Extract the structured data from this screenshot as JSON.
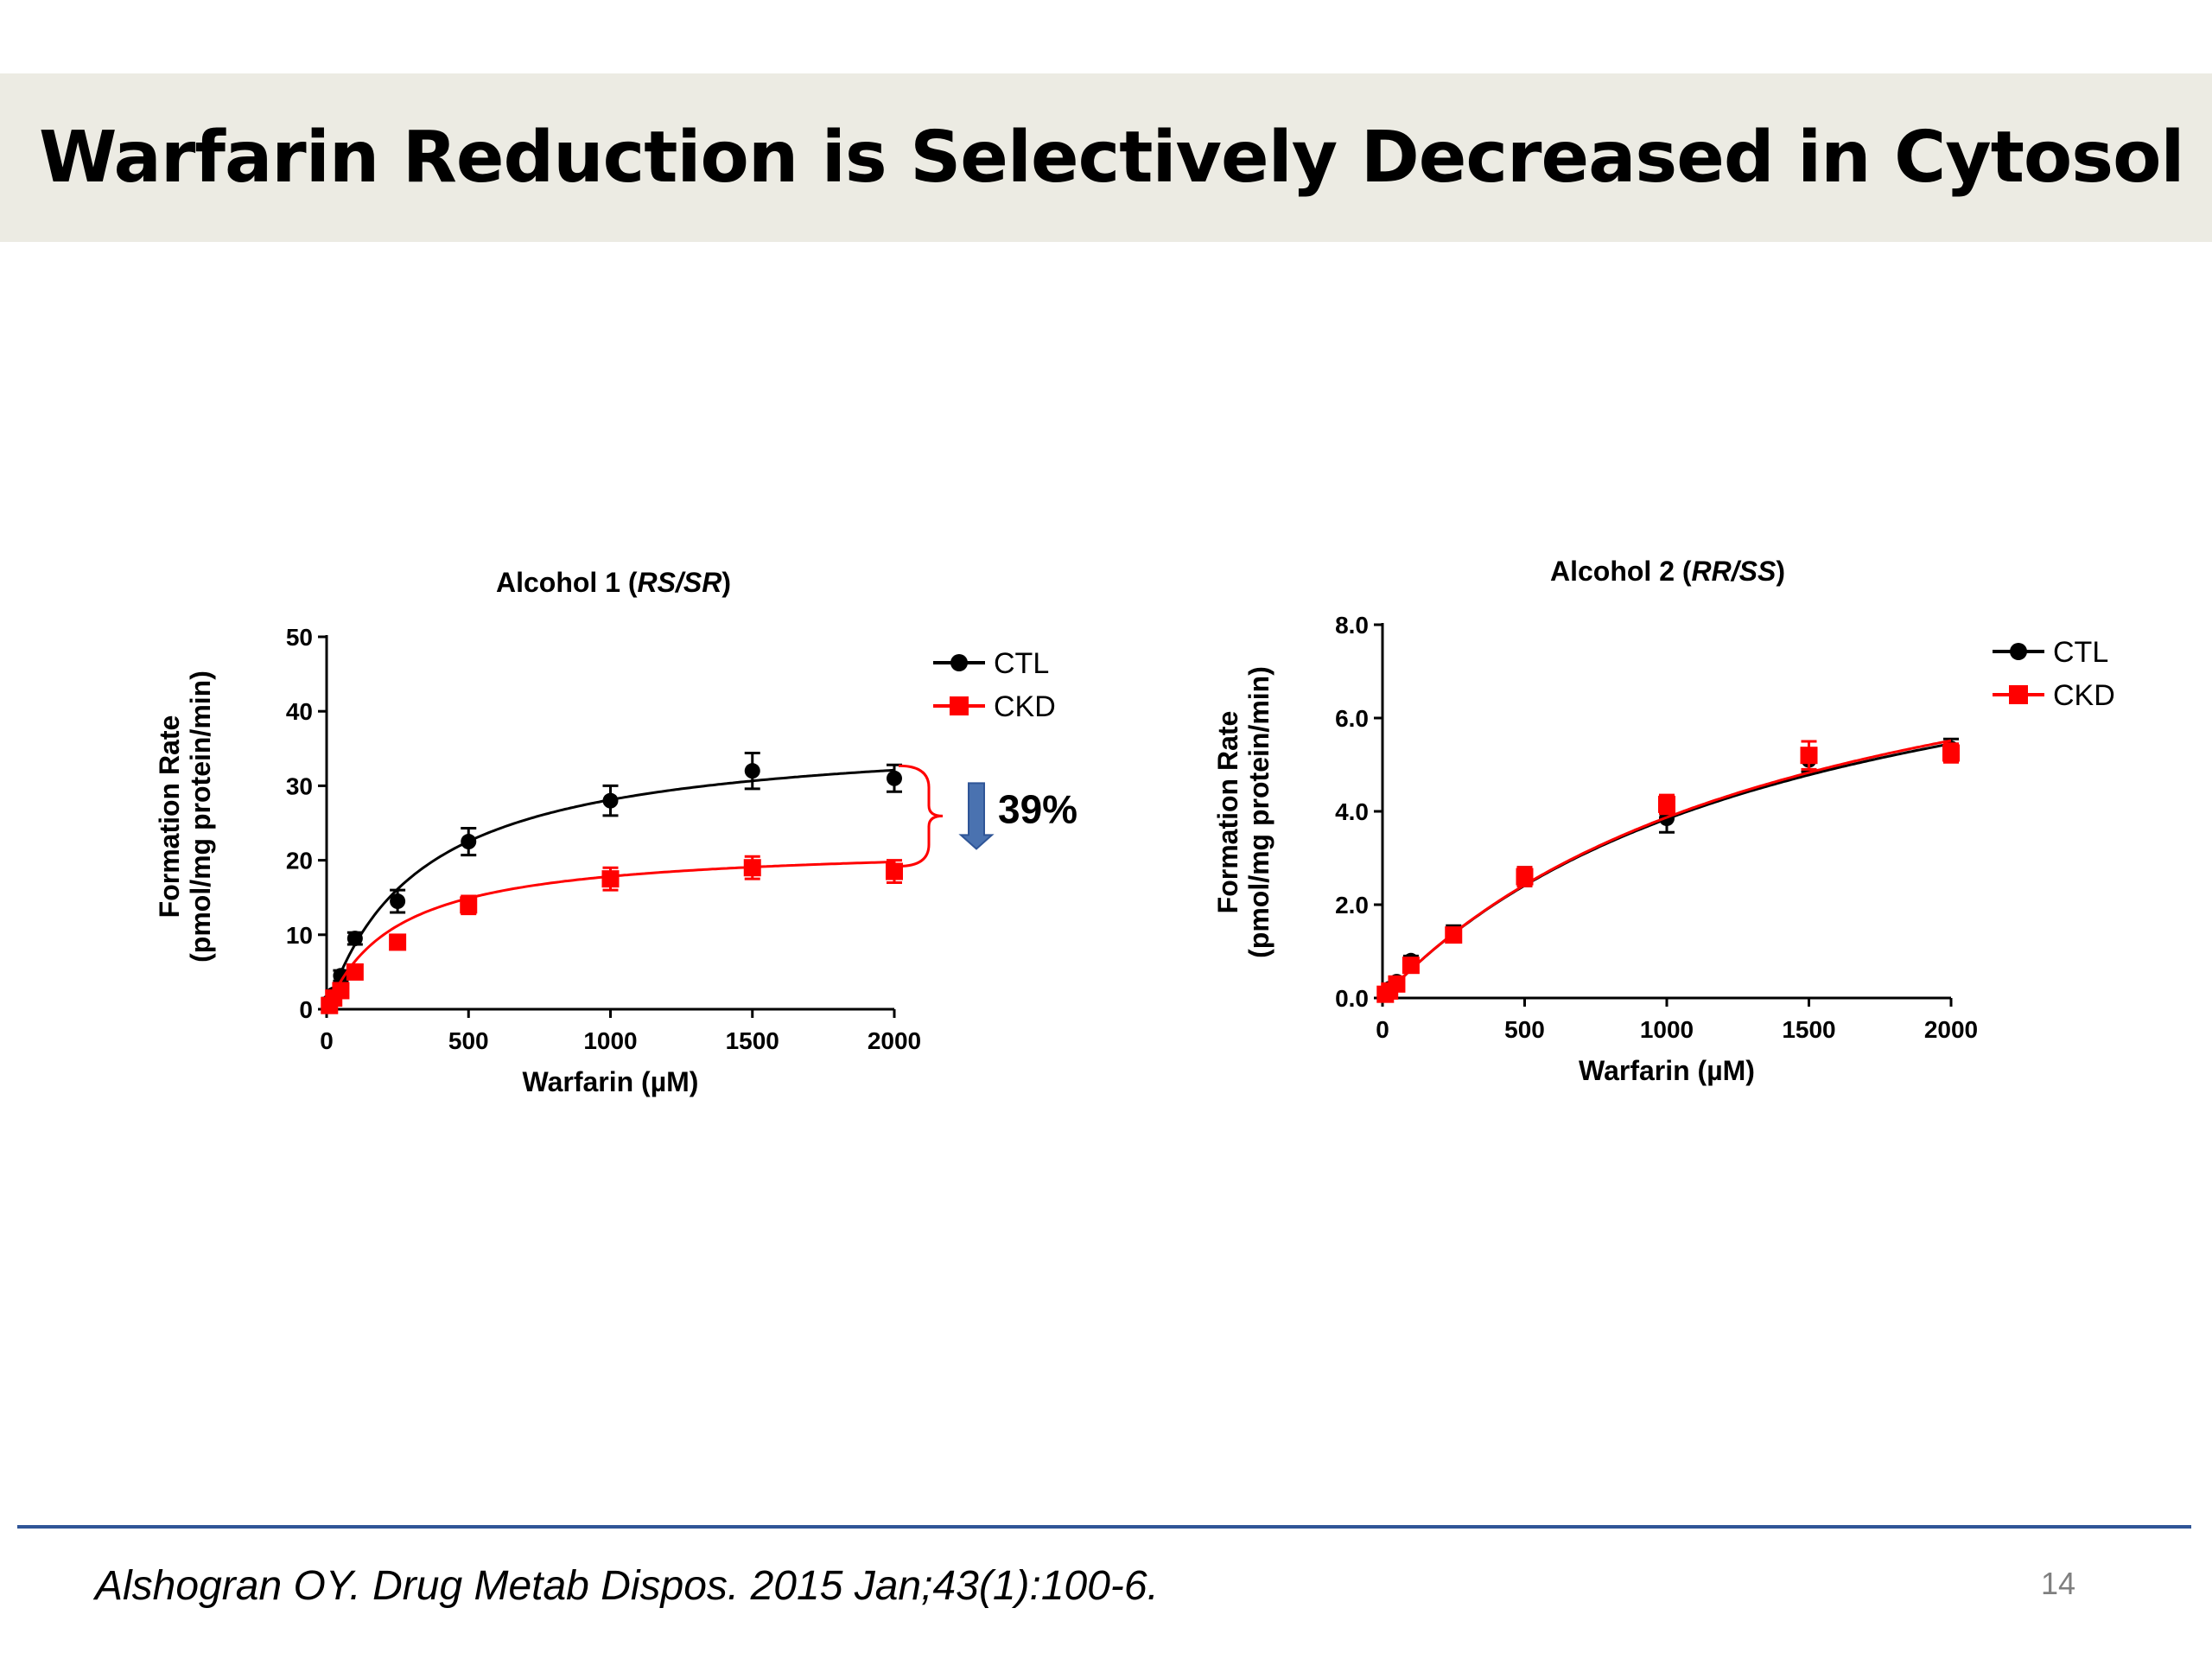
{
  "slide": {
    "title": "Warfarin Reduction is Selectively Decreased in Cytosol",
    "citation": "Alshogran OY. Drug Metab Dispos. 2015 Jan;43(1):100-6.",
    "page_number": "14",
    "footer_rule_color": "#2f5597"
  },
  "chart_data": [
    {
      "type": "scatter",
      "title": "Alcohol 1 (",
      "title_italic": "RS/SR",
      "title_end": ")",
      "xlabel": "Warfarin (µM)",
      "ylabel": "Formation Rate",
      "ylabel2": "(pmol/mg protein/min)",
      "xlim": [
        0,
        2000
      ],
      "ylim": [
        0,
        50
      ],
      "xticks": [
        "0",
        "500",
        "1000",
        "1500",
        "2000"
      ],
      "yticks": [
        "0",
        "10",
        "20",
        "30",
        "40",
        "50"
      ],
      "xtick_values": [
        0,
        500,
        1000,
        1500,
        2000
      ],
      "ytick_values": [
        0,
        10,
        20,
        30,
        40,
        50
      ],
      "legend_position": "top-right",
      "annotation": "39%",
      "series": [
        {
          "name": "CTL",
          "color": "#000000",
          "marker": "circle",
          "x": [
            10,
            25,
            50,
            100,
            250,
            500,
            1000,
            1500,
            2000
          ],
          "y": [
            1.0,
            2.0,
            4.5,
            9.5,
            14.5,
            22.5,
            28.0,
            32.0,
            31.0
          ],
          "err": [
            0.5,
            0.5,
            0.7,
            0.8,
            1.5,
            1.8,
            2.0,
            2.4,
            1.8
          ],
          "fit": {
            "vmax": 37.4,
            "km": 330
          }
        },
        {
          "name": "CKD",
          "color": "#ff0000",
          "marker": "square",
          "x": [
            10,
            25,
            50,
            100,
            250,
            500,
            1000,
            1500,
            2000
          ],
          "y": [
            0.5,
            1.5,
            2.5,
            5.0,
            9.0,
            14.0,
            17.5,
            19.0,
            18.5
          ],
          "err": [
            0.3,
            0.4,
            0.5,
            0.6,
            0.8,
            1.2,
            1.5,
            1.5,
            1.5
          ],
          "fit": {
            "vmax": 22.2,
            "km": 245
          }
        }
      ]
    },
    {
      "type": "scatter",
      "title": "Alcohol 2 (",
      "title_italic": "RR/SS",
      "title_end": ")",
      "xlabel": "Warfarin (µM)",
      "ylabel": "Formation Rate",
      "ylabel2": "(pmol/mg protein/min)",
      "xlim": [
        0,
        2000
      ],
      "ylim": [
        0,
        8
      ],
      "xticks": [
        "0",
        "500",
        "1000",
        "1500",
        "2000"
      ],
      "yticks": [
        "0.0",
        "2.0",
        "4.0",
        "6.0",
        "8.0"
      ],
      "xtick_values": [
        0,
        500,
        1000,
        1500,
        2000
      ],
      "ytick_values": [
        0,
        2,
        4,
        6,
        8
      ],
      "legend_position": "top-right",
      "series": [
        {
          "name": "CTL",
          "color": "#000000",
          "marker": "circle",
          "x": [
            10,
            25,
            50,
            100,
            250,
            500,
            1000,
            1500,
            2000
          ],
          "y": [
            0.1,
            0.2,
            0.35,
            0.8,
            1.4,
            2.6,
            3.85,
            5.1,
            5.35
          ],
          "err": [
            0.05,
            0.05,
            0.08,
            0.1,
            0.15,
            0.2,
            0.3,
            0.25,
            0.2
          ],
          "fit": {
            "vmax": 9.4,
            "km": 1450
          }
        },
        {
          "name": "CKD",
          "color": "#ff0000",
          "marker": "square",
          "x": [
            10,
            25,
            50,
            100,
            250,
            500,
            1000,
            1500,
            2000
          ],
          "y": [
            0.08,
            0.15,
            0.3,
            0.7,
            1.35,
            2.6,
            4.15,
            5.2,
            5.25
          ],
          "err": [
            0.05,
            0.05,
            0.08,
            0.1,
            0.15,
            0.2,
            0.2,
            0.3,
            0.2
          ],
          "fit": {
            "vmax": 9.6,
            "km": 1480
          }
        }
      ]
    }
  ]
}
